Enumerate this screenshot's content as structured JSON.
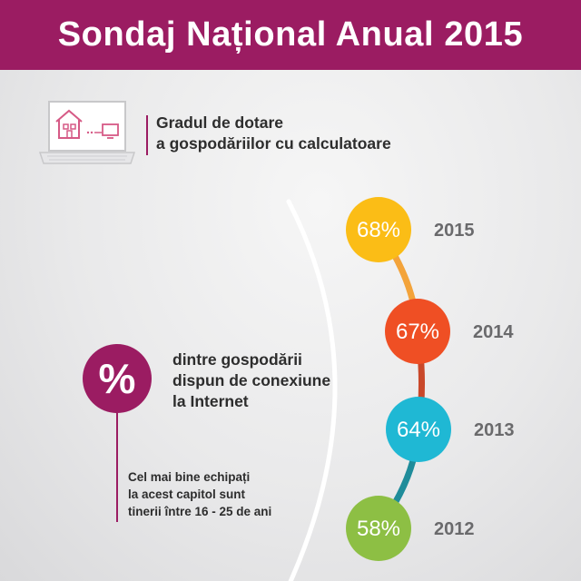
{
  "header": {
    "title": "Sondaj Național Anual 2015"
  },
  "intro": {
    "line1": "Gradul de dotare",
    "line2": "a gospodăriilor cu calculatoare"
  },
  "stat": {
    "symbol": "%",
    "line1": "dintre gospodării",
    "line2": "dispun de conexiune",
    "line3": "la Internet"
  },
  "note": {
    "line1": "Cel mai bine echipați",
    "line2": "la acest capitol sunt",
    "line3": "tinerii între 16 - 25 de ani"
  },
  "colors": {
    "header_bg": "#9b1c62",
    "accent": "#9b1c62"
  },
  "icons": {
    "laptop": "laptop-with-house-and-tv-icon"
  },
  "chart_data": {
    "type": "line",
    "x": [
      "2015",
      "2014",
      "2013",
      "2012"
    ],
    "values": [
      68,
      67,
      64,
      58
    ],
    "labels": [
      "68%",
      "67%",
      "64%",
      "58%"
    ],
    "colors": [
      "#fbbd16",
      "#ef4f24",
      "#1fb8d4",
      "#8dbf44"
    ],
    "connector_colors": [
      "#f3a33a",
      "#c9482a",
      "#1f8c9a"
    ]
  }
}
